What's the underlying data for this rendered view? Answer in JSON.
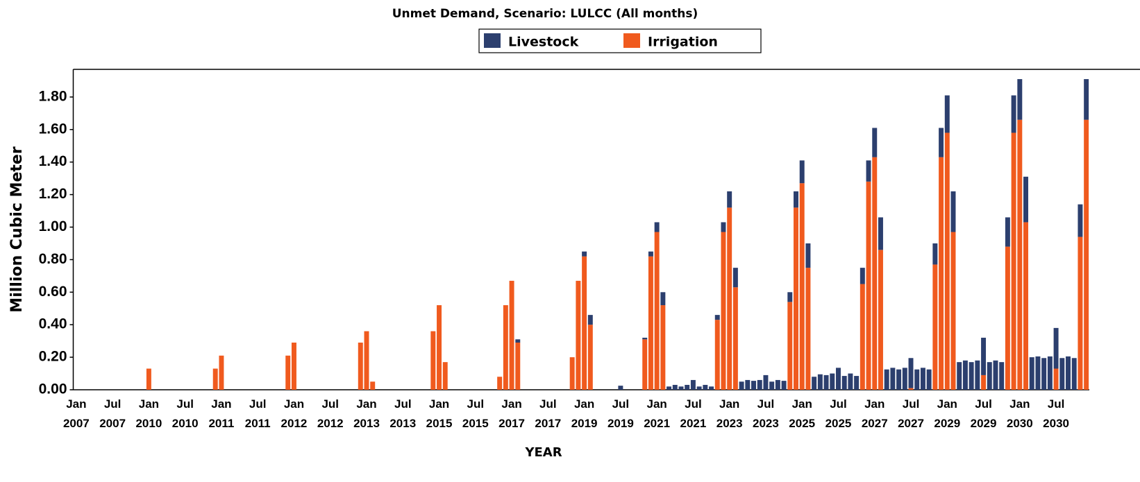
{
  "chart_data": {
    "type": "stacked_bar",
    "title": "Unmet Demand, Scenario: LULCC (All months)",
    "x_label": "YEAR",
    "y_label": "Million Cubic Meter",
    "categories": [
      "Jan 2007",
      null,
      null,
      null,
      null,
      null,
      "Jul 2007",
      null,
      null,
      null,
      null,
      null,
      "Jan 2010",
      null,
      null,
      null,
      null,
      null,
      "Jul 2010",
      null,
      null,
      null,
      null,
      null,
      "Jan 2011",
      null,
      null,
      null,
      null,
      null,
      "Jul 2011",
      null,
      null,
      null,
      null,
      null,
      "Jan 2012",
      null,
      null,
      null,
      null,
      null,
      "Jul 2012",
      null,
      null,
      null,
      null,
      null,
      "Jan 2013",
      null,
      null,
      null,
      null,
      null,
      "Jul 2013",
      null,
      null,
      null,
      null,
      null,
      "Jan 2015",
      null,
      null,
      null,
      null,
      null,
      "Jul 2015",
      null,
      null,
      null,
      null,
      null,
      "Jan 2017",
      null,
      null,
      null,
      null,
      null,
      "Jul 2017",
      null,
      null,
      null,
      null,
      null,
      "Jan 2019",
      null,
      null,
      null,
      null,
      null,
      "Jul 2019",
      null,
      null,
      null,
      null,
      null,
      "Jan 2021",
      null,
      null,
      null,
      null,
      null,
      "Jul 2021",
      null,
      null,
      null,
      null,
      null,
      "Jan 2023",
      null,
      null,
      null,
      null,
      null,
      "Jul 2023",
      null,
      null,
      null,
      null,
      null,
      "Jan 2025",
      null,
      null,
      null,
      null,
      null,
      "Jul 2025",
      null,
      null,
      null,
      null,
      null,
      "Jan 2027",
      null,
      null,
      null,
      null,
      null,
      "Jul 2027",
      null,
      null,
      null,
      null,
      null,
      "Jan 2029",
      null,
      null,
      null,
      null,
      null,
      "Jul 2029",
      null,
      null,
      null,
      null,
      null,
      "Jan 2030",
      null,
      null,
      null,
      null,
      null,
      "Jul 2030",
      null,
      null,
      null,
      null,
      null
    ],
    "series": [
      {
        "name": "Livestock",
        "color": "#2c3f6e",
        "values": [
          0,
          0,
          0,
          0,
          0,
          0,
          0,
          0,
          0,
          0,
          0,
          0,
          0,
          0,
          0,
          0,
          0,
          0,
          0,
          0,
          0,
          0,
          0,
          0,
          0,
          0,
          0,
          0,
          0,
          0,
          0,
          0,
          0,
          0,
          0,
          0,
          0,
          0,
          0,
          0,
          0,
          0,
          0,
          0,
          0,
          0,
          0,
          0,
          0,
          0,
          0,
          0,
          0,
          0,
          0,
          0,
          0,
          0,
          0,
          0,
          0,
          0,
          0,
          0,
          0,
          0,
          0,
          0,
          0,
          0,
          0,
          0,
          0,
          0.02,
          0,
          0,
          0,
          0,
          0,
          0,
          0,
          0,
          0,
          0,
          0.03,
          0.06,
          0,
          0,
          0,
          0,
          0.025,
          0,
          0,
          0,
          0.01,
          0.03,
          0.06,
          0.08,
          0.02,
          0.03,
          0.02,
          0.03,
          0.06,
          0.02,
          0.03,
          0.02,
          0.03,
          0.06,
          0.1,
          0.12,
          0.05,
          0.06,
          0.055,
          0.06,
          0.09,
          0.05,
          0.06,
          0.055,
          0.06,
          0.1,
          0.14,
          0.15,
          0.08,
          0.095,
          0.09,
          0.1,
          0.135,
          0.085,
          0.1,
          0.085,
          0.1,
          0.13,
          0.18,
          0.2,
          0.125,
          0.135,
          0.125,
          0.135,
          0.185,
          0.125,
          0.135,
          0.125,
          0.13,
          0.18,
          0.23,
          0.25,
          0.17,
          0.18,
          0.17,
          0.18,
          0.23,
          0.17,
          0.18,
          0.17,
          0.18,
          0.23,
          0.25,
          0.28,
          0.2,
          0.205,
          0.195,
          0.205,
          0.25,
          0.195,
          0.205,
          0.195,
          0.2,
          0.25
        ]
      },
      {
        "name": "Irrigation",
        "color": "#f05a1e",
        "values": [
          0,
          0,
          0,
          0,
          0,
          0,
          0,
          0,
          0,
          0,
          0,
          0,
          0.13,
          0,
          0,
          0,
          0,
          0,
          0,
          0,
          0,
          0,
          0,
          0.13,
          0.21,
          0,
          0,
          0,
          0,
          0,
          0,
          0,
          0,
          0,
          0,
          0.21,
          0.29,
          0,
          0,
          0,
          0,
          0,
          0,
          0,
          0,
          0,
          0,
          0.29,
          0.36,
          0.05,
          0,
          0,
          0,
          0,
          0,
          0,
          0,
          0,
          0,
          0.36,
          0.52,
          0.17,
          0,
          0,
          0,
          0,
          0,
          0,
          0,
          0,
          0.08,
          0.52,
          0.67,
          0.29,
          0,
          0,
          0,
          0,
          0,
          0,
          0,
          0,
          0.2,
          0.67,
          0.82,
          0.4,
          0,
          0,
          0,
          0,
          0,
          0,
          0,
          0,
          0.31,
          0.82,
          0.97,
          0.52,
          0,
          0,
          0,
          0,
          0,
          0,
          0,
          0,
          0.43,
          0.97,
          1.12,
          0.63,
          0,
          0,
          0,
          0,
          0,
          0,
          0,
          0,
          0.54,
          1.12,
          1.27,
          0.75,
          0,
          0,
          0,
          0,
          0,
          0,
          0,
          0,
          0.65,
          1.28,
          1.43,
          0.86,
          0,
          0,
          0,
          0,
          0.01,
          0,
          0,
          0,
          0.77,
          1.43,
          1.58,
          0.97,
          0,
          0,
          0,
          0,
          0.09,
          0,
          0,
          0,
          0.88,
          1.58,
          1.66,
          1.03,
          0,
          0,
          0,
          0,
          0.13,
          0,
          0,
          0,
          0.94,
          1.66
        ]
      }
    ],
    "stack_order": [
      "Irrigation",
      "Livestock"
    ],
    "ylim": [
      0,
      1.97
    ],
    "yticks": [
      {
        "value": 0,
        "label": "0.00"
      },
      {
        "value": 0.2,
        "label": "0.20"
      },
      {
        "value": 0.4,
        "label": "0.40"
      },
      {
        "value": 0.6,
        "label": "0.60"
      },
      {
        "value": 0.8,
        "label": "0.80"
      },
      {
        "value": 1,
        "label": "1.00"
      },
      {
        "value": 1.2,
        "label": "1.20"
      },
      {
        "value": 1.4,
        "label": "1.40"
      },
      {
        "value": 1.6,
        "label": "1.60"
      },
      {
        "value": 1.8,
        "label": "1.80"
      }
    ],
    "grid": false
  }
}
